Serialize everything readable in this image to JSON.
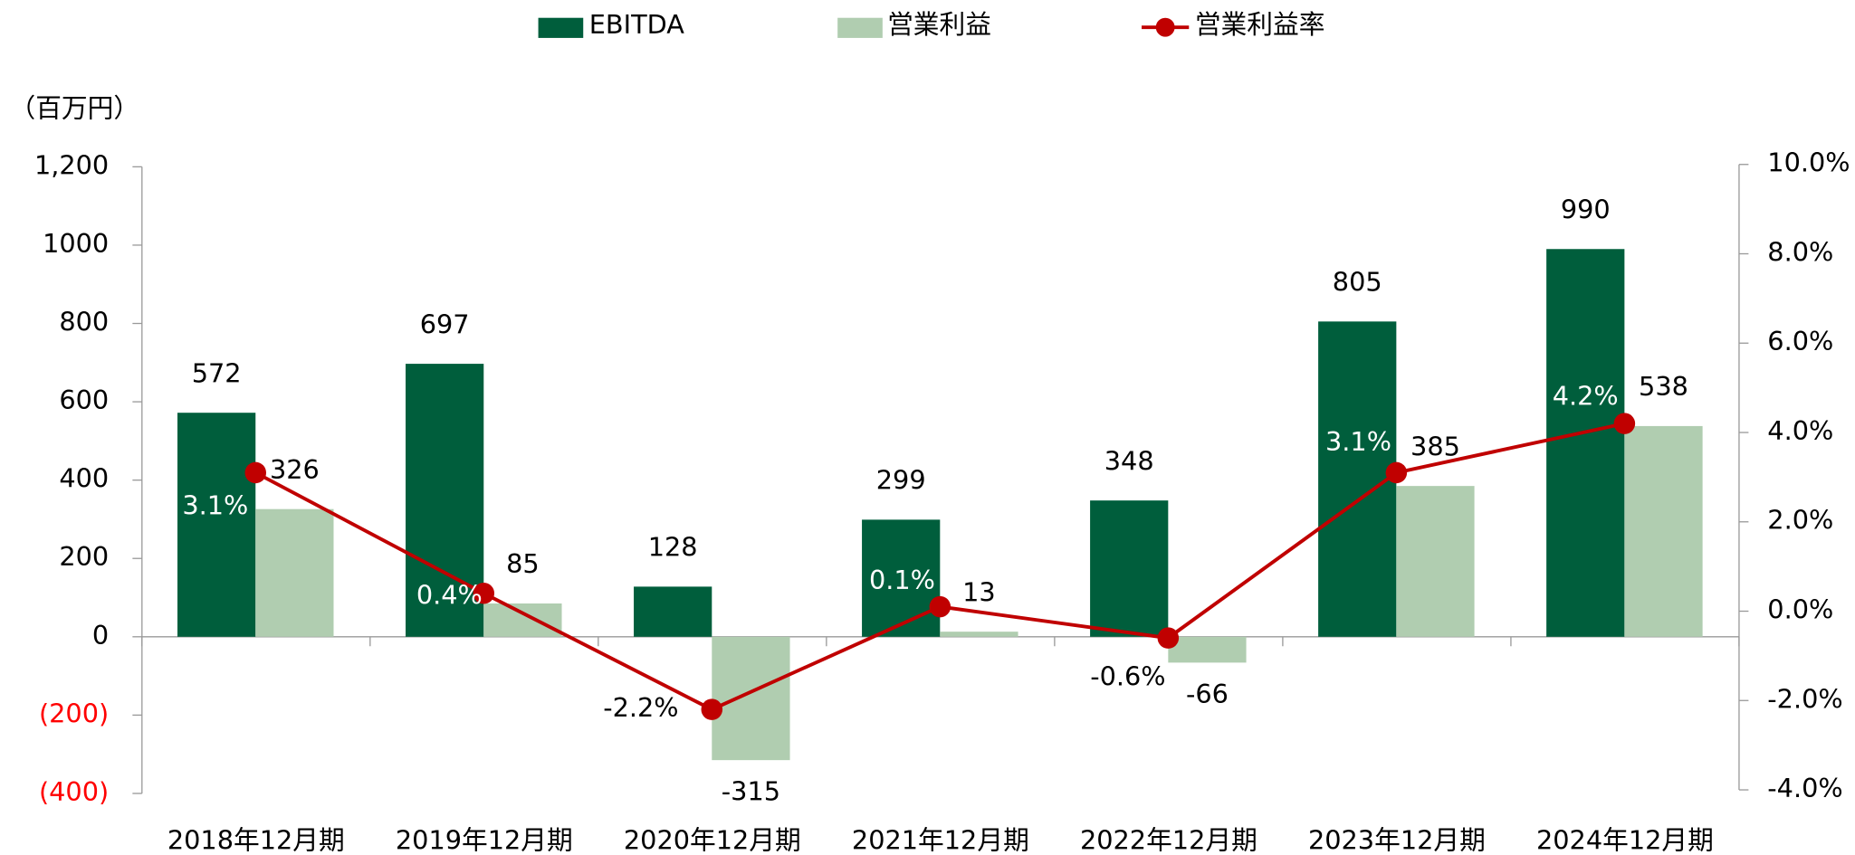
{
  "chart_data": {
    "type": "bar",
    "y_label": "（百万円）",
    "categories": [
      "2018年12月期",
      "2019年12月期",
      "2020年12月期",
      "2021年12月期",
      "2022年12月期",
      "2023年12月期",
      "2024年12月期"
    ],
    "series": [
      {
        "name": "EBITDA",
        "color": "#005e3c",
        "values": [
          572,
          697,
          128,
          299,
          348,
          805,
          990
        ]
      },
      {
        "name": "営業利益",
        "color": "#b0cdb0",
        "values": [
          326,
          85,
          -315,
          13,
          -66,
          385,
          538
        ]
      },
      {
        "name": "営業利益率",
        "type": "line",
        "axis": "y2",
        "color": "#c00000",
        "values": [
          3.1,
          0.4,
          -2.2,
          0.1,
          -0.6,
          3.1,
          4.2
        ],
        "value_labels": [
          "3.1%",
          "0.4%",
          "-2.2%",
          "0.1%",
          "-0.6%",
          "3.1%",
          "4.2%"
        ]
      }
    ],
    "ylim": [
      -400,
      1200
    ],
    "yticks": [
      {
        "value": -400,
        "label": "(400)"
      },
      {
        "value": -200,
        "label": "(200)"
      },
      0,
      200,
      400,
      600,
      800,
      1000,
      {
        "value": 1200,
        "label": "1,200"
      }
    ],
    "y2lim": [
      -4,
      10
    ],
    "y2ticks": [
      {
        "value": -4,
        "label": "-4.0%"
      },
      {
        "value": -2,
        "label": "-2.0%"
      },
      {
        "value": 0,
        "label": "0.0%"
      },
      {
        "value": 2,
        "label": "2.0%"
      },
      {
        "value": 4,
        "label": "4.0%"
      },
      {
        "value": 6,
        "label": "6.0%"
      },
      {
        "value": 8,
        "label": "8.0%"
      },
      {
        "value": 10,
        "label": "10.0%"
      }
    ],
    "negative_tick_color": "#ff0000"
  }
}
